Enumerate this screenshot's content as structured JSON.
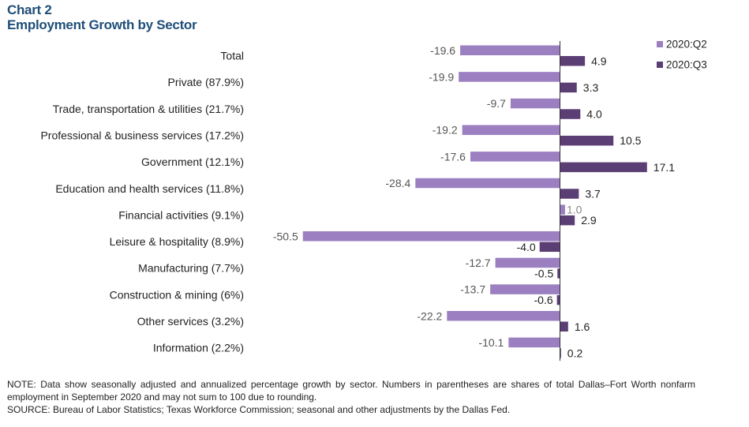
{
  "header": {
    "label": "Chart 2",
    "title": "Employment Growth by Sector"
  },
  "chart_data": {
    "type": "bar",
    "orientation": "horizontal",
    "categories": [
      "Total",
      "Private (87.9%)",
      "Trade, transportation & utilities (21.7%)",
      "Professional & business services (17.2%)",
      "Government (12.1%)",
      "Education and health services (11.8%)",
      "Financial activities (9.1%)",
      "Leisure & hospitality (8.9%)",
      "Manufacturing (7.7%)",
      "Construction & mining (6%)",
      "Other services (3.2%)",
      "Information (2.2%)"
    ],
    "series": [
      {
        "name": "2020:Q2",
        "color": "#9b7fc0",
        "values": [
          -19.6,
          -19.9,
          -9.7,
          -19.2,
          -17.6,
          -28.4,
          1.0,
          -50.5,
          -12.7,
          -13.7,
          -22.2,
          -10.1
        ],
        "labels": [
          "-19.6",
          "-19.9",
          "-9.7",
          "-19.2",
          "-17.6",
          "-28.4",
          "1.0",
          "-50.5",
          "-12.7",
          "-13.7",
          "-22.2",
          "-10.1"
        ]
      },
      {
        "name": "2020:Q3",
        "color": "#5b3f74",
        "values": [
          4.9,
          3.3,
          4.0,
          10.5,
          17.1,
          3.7,
          2.9,
          -4.0,
          -0.5,
          -0.6,
          1.6,
          0.2
        ],
        "labels": [
          "4.9",
          "3.3",
          "4.0",
          "10.5",
          "17.1",
          "3.7",
          "2.9",
          "-4.0",
          "-0.5",
          "-0.6",
          "1.6",
          "0.2"
        ]
      }
    ],
    "xlim": [
      -55,
      20
    ],
    "grid": false,
    "legend": "top-right"
  },
  "notes": {
    "note": "NOTE: Data show seasonally adjusted and annualized percentage growth by sector. Numbers in parentheses are shares of total Dallas–Fort Worth nonfarm employment in September 2020 and may not sum to 100 due to rounding.",
    "source": "SOURCE: Bureau of Labor Statistics; Texas Workforce Commission; seasonal and other adjustments by the Dallas Fed."
  }
}
